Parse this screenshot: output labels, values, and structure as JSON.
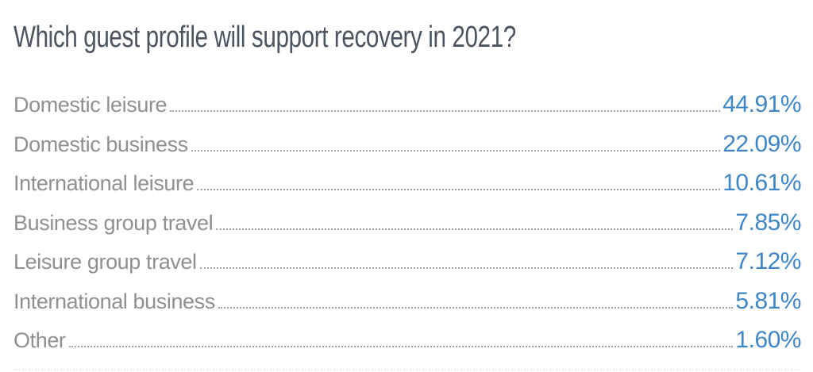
{
  "title": "Which guest profile will support recovery in 2021?",
  "colors": {
    "title": "#4b5460",
    "label": "#8f8f94",
    "leader_dots": "#9f9fa4",
    "value": "#3e86c6",
    "background": "#ffffff"
  },
  "rows": [
    {
      "label": "Domestic leisure",
      "value": "44.91%"
    },
    {
      "label": "Domestic business",
      "value": "22.09%"
    },
    {
      "label": "International leisure",
      "value": "10.61%"
    },
    {
      "label": "Business group travel",
      "value": "7.85%"
    },
    {
      "label": "Leisure group travel",
      "value": "7.12%"
    },
    {
      "label": "International business",
      "value": "5.81%"
    },
    {
      "label": "Other",
      "value": "1.60%"
    }
  ],
  "chart_data": {
    "type": "table",
    "title": "Which guest profile will support recovery in 2021?",
    "categories": [
      "Domestic leisure",
      "Domestic business",
      "International leisure",
      "Business group travel",
      "Leisure group travel",
      "International business",
      "Other"
    ],
    "values": [
      44.91,
      22.09,
      10.61,
      7.85,
      7.12,
      5.81,
      1.6
    ],
    "value_unit": "percent",
    "value_labels": [
      "44.91%",
      "22.09%",
      "10.61%",
      "7.85%",
      "7.12%",
      "5.81%",
      "1.60%"
    ],
    "layout": "ranked list with dotted leader lines, values right-aligned"
  }
}
